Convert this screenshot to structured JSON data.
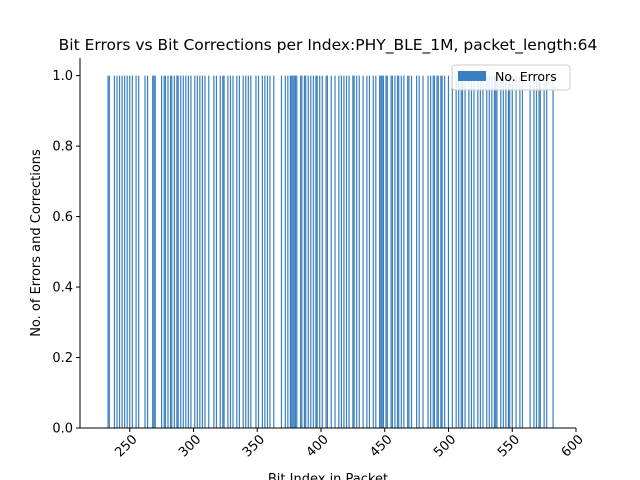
{
  "chart_data": {
    "type": "bar",
    "title": "Bit Errors vs Bit Corrections per Index:PHY_BLE_1M, packet_length:64",
    "xlabel": "Bit Index in Packet",
    "ylabel": "No. of Errors and Corrections",
    "xlim": [
      211,
      600
    ],
    "ylim": [
      0,
      1.05
    ],
    "xticks": [
      250,
      300,
      350,
      400,
      450,
      500,
      550,
      600
    ],
    "yticks": [
      0.0,
      0.2,
      0.4,
      0.6,
      0.8,
      1.0
    ],
    "xtick_labels": [
      "250",
      "300",
      "350",
      "400",
      "450",
      "500",
      "550",
      "600"
    ],
    "ytick_labels": [
      "0.0",
      "0.2",
      "0.4",
      "0.6",
      "0.8",
      "1.0"
    ],
    "grid": false,
    "legend_position": "top-right",
    "colors": {
      "errors": "#3a7fbf"
    },
    "series": [
      {
        "name": "No. Errors",
        "x": [
          233,
          234,
          238,
          240,
          242,
          244,
          246,
          248,
          250,
          252,
          255,
          257,
          262,
          264,
          268,
          269,
          270,
          275,
          277,
          278,
          280,
          282,
          283,
          285,
          287,
          288,
          290,
          292,
          294,
          296,
          298,
          301,
          303,
          305,
          307,
          309,
          312,
          316,
          318,
          321,
          323,
          324,
          327,
          329,
          331,
          334,
          336,
          339,
          341,
          343,
          345,
          349,
          351,
          354,
          356,
          358,
          360,
          363,
          369,
          372,
          374,
          376,
          377,
          378,
          379,
          380,
          381,
          384,
          385,
          387,
          388,
          390,
          392,
          394,
          396,
          397,
          399,
          401,
          404,
          405,
          408,
          411,
          414,
          416,
          418,
          420,
          422,
          425,
          426,
          428,
          430,
          433,
          436,
          438,
          441,
          443,
          446,
          447,
          448,
          449,
          451,
          452,
          455,
          456,
          458,
          460,
          461,
          463,
          465,
          468,
          469,
          471,
          475,
          477,
          480,
          484,
          486,
          488,
          489,
          491,
          492,
          494,
          495,
          497,
          500,
          503,
          506,
          508,
          510,
          511,
          513,
          516,
          518,
          520,
          523,
          525,
          527,
          530,
          532,
          534,
          536,
          537,
          538,
          541,
          543,
          545,
          547,
          548,
          550,
          553,
          556,
          558,
          564,
          567,
          569,
          571,
          572,
          575,
          577,
          582
        ],
        "values": [
          1,
          1,
          1,
          1,
          1,
          1,
          1,
          1,
          1,
          1,
          1,
          1,
          1,
          1,
          1,
          1,
          1,
          1,
          1,
          1,
          1,
          1,
          1,
          1,
          1,
          1,
          1,
          1,
          1,
          1,
          1,
          1,
          1,
          1,
          1,
          1,
          1,
          1,
          1,
          1,
          1,
          1,
          1,
          1,
          1,
          1,
          1,
          1,
          1,
          1,
          1,
          1,
          1,
          1,
          1,
          1,
          1,
          1,
          1,
          1,
          1,
          1,
          1,
          1,
          1,
          1,
          1,
          1,
          1,
          1,
          1,
          1,
          1,
          1,
          1,
          1,
          1,
          1,
          1,
          1,
          1,
          1,
          1,
          1,
          1,
          1,
          1,
          1,
          1,
          1,
          1,
          1,
          1,
          1,
          1,
          1,
          1,
          1,
          1,
          1,
          1,
          1,
          1,
          1,
          1,
          1,
          1,
          1,
          1,
          1,
          1,
          1,
          1,
          1,
          1,
          1,
          1,
          1,
          1,
          1,
          1,
          1,
          1,
          1,
          1,
          1,
          1,
          1,
          1,
          1,
          1,
          1,
          1,
          1,
          1,
          1,
          1,
          1,
          1,
          1,
          1,
          1,
          1,
          1,
          1,
          1,
          1,
          1,
          1,
          1,
          1,
          1,
          1,
          1,
          1,
          1,
          1,
          1,
          1,
          1
        ]
      }
    ]
  }
}
